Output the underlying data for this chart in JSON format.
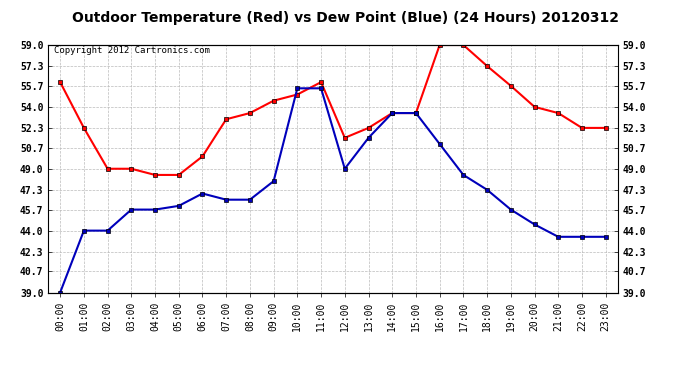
{
  "title": "Outdoor Temperature (Red) vs Dew Point (Blue) (24 Hours) 20120312",
  "copyright_text": "Copyright 2012 Cartronics.com",
  "x_labels": [
    "00:00",
    "01:00",
    "02:00",
    "03:00",
    "04:00",
    "05:00",
    "06:00",
    "07:00",
    "08:00",
    "09:00",
    "10:00",
    "11:00",
    "12:00",
    "13:00",
    "14:00",
    "15:00",
    "16:00",
    "17:00",
    "18:00",
    "19:00",
    "20:00",
    "21:00",
    "22:00",
    "23:00"
  ],
  "temp_red": [
    56.0,
    52.3,
    49.0,
    49.0,
    48.5,
    48.5,
    50.0,
    53.0,
    53.5,
    54.5,
    55.0,
    56.0,
    51.5,
    52.3,
    53.5,
    53.5,
    59.0,
    59.0,
    57.3,
    55.7,
    54.0,
    53.5,
    52.3,
    52.3
  ],
  "dew_blue": [
    39.0,
    44.0,
    44.0,
    45.7,
    45.7,
    46.0,
    47.0,
    46.5,
    46.5,
    48.0,
    55.5,
    55.5,
    49.0,
    51.5,
    53.5,
    53.5,
    51.0,
    48.5,
    47.3,
    45.7,
    44.5,
    43.5,
    43.5,
    43.5
  ],
  "ylim": [
    39.0,
    59.0
  ],
  "yticks": [
    39.0,
    40.7,
    42.3,
    44.0,
    45.7,
    47.3,
    49.0,
    50.7,
    52.3,
    54.0,
    55.7,
    57.3,
    59.0
  ],
  "color_red": "#ff0000",
  "color_blue": "#0000bb",
  "bg_color": "#ffffff",
  "grid_color": "#bbbbbb",
  "title_fontsize": 10,
  "copyright_fontsize": 6.5,
  "tick_fontsize": 7,
  "marker": "s",
  "marker_size": 3,
  "line_width": 1.5
}
